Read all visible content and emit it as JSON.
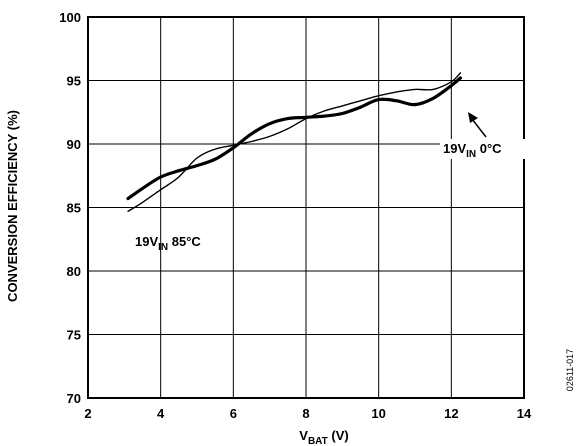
{
  "chart_data": {
    "type": "line",
    "figure_id": "02611-017",
    "xlabel": {
      "main": "V",
      "sub": "BAT",
      "suffix": " (V)"
    },
    "ylabel": "CONVERSION EFFICIENCY (%)",
    "xlim": [
      2,
      14
    ],
    "ylim": [
      70,
      100
    ],
    "xticks": [
      2,
      4,
      6,
      8,
      10,
      12,
      14
    ],
    "yticks": [
      70,
      75,
      80,
      85,
      90,
      95,
      100
    ],
    "grid": true,
    "series": [
      {
        "style": "thick",
        "x": [
          3.1,
          3.5,
          4.0,
          4.5,
          5.0,
          5.5,
          6.0,
          6.5,
          7.0,
          7.5,
          8.0,
          8.5,
          9.0,
          9.5,
          10.0,
          10.5,
          11.0,
          11.5,
          12.0,
          12.25
        ],
        "y": [
          85.7,
          86.5,
          87.4,
          87.9,
          88.3,
          88.8,
          89.7,
          90.8,
          91.6,
          92.0,
          92.1,
          92.2,
          92.4,
          92.9,
          93.5,
          93.4,
          93.1,
          93.6,
          94.6,
          95.2
        ]
      },
      {
        "style": "thin",
        "x": [
          3.1,
          3.5,
          4.0,
          4.5,
          5.0,
          5.5,
          6.0,
          6.5,
          7.0,
          7.5,
          8.0,
          8.5,
          9.0,
          9.5,
          10.0,
          10.5,
          11.0,
          11.5,
          12.0,
          12.25
        ],
        "y": [
          84.7,
          85.4,
          86.4,
          87.4,
          88.9,
          89.6,
          89.9,
          90.2,
          90.6,
          91.2,
          92.0,
          92.6,
          93.0,
          93.4,
          93.8,
          94.1,
          94.3,
          94.3,
          94.9,
          95.6
        ]
      }
    ],
    "annotations": [
      {
        "id": "thick-series-label",
        "main": "19V",
        "sub": "IN",
        "suffix": " 85°C"
      },
      {
        "id": "thin-series-label",
        "main": "19V",
        "sub": "IN",
        "suffix": " 0°C"
      }
    ]
  }
}
